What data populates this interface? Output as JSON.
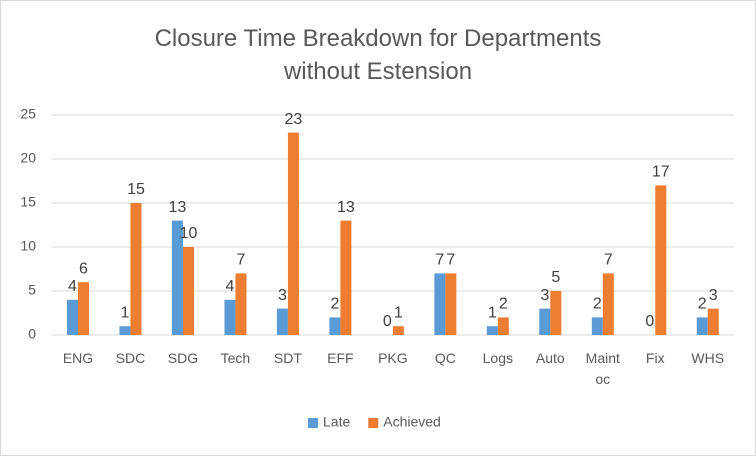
{
  "chart_data": {
    "type": "bar",
    "title": "Closure Time Breakdown for Departments without Estension",
    "categories": [
      "ENG",
      "SDC",
      "SDG",
      "Tech",
      "SDT",
      "EFF",
      "PKG",
      "QC",
      "Logs",
      "Auto",
      "Maint oc",
      "Fix",
      "WHS"
    ],
    "series": [
      {
        "name": "Late",
        "color": "#5b9bd5",
        "values": [
          4,
          1,
          13,
          4,
          3,
          2,
          0,
          7,
          1,
          3,
          2,
          0,
          2
        ]
      },
      {
        "name": "Achieved",
        "color": "#ed7d31",
        "values": [
          6,
          15,
          10,
          7,
          23,
          13,
          1,
          7,
          2,
          5,
          7,
          17,
          3
        ]
      }
    ],
    "ylim": [
      0,
      25
    ],
    "yticks": [
      0,
      5,
      10,
      15,
      20,
      25
    ],
    "grid": true,
    "legend": "bottom"
  }
}
